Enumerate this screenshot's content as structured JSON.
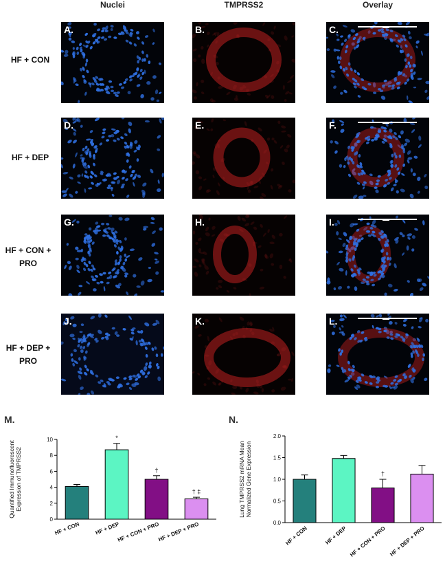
{
  "columns": [
    "Nuclei",
    "TMPRSS2",
    "Overlay"
  ],
  "rows": [
    {
      "label": "HF + CON",
      "panels": [
        "A.",
        "B.",
        "C."
      ]
    },
    {
      "label": "HF + DEP",
      "panels": [
        "D.",
        "E.",
        "F."
      ]
    },
    {
      "label": "HF + CON + PRO",
      "panels": [
        "G.",
        "H.",
        "I."
      ]
    },
    {
      "label": "HF + DEP + PRO",
      "panels": [
        "J.",
        "K.",
        "L."
      ]
    }
  ],
  "colors": {
    "nuclei": "#2f6fe0",
    "tmprss2": "#c02020",
    "hf_con": "#24807c",
    "hf_dep": "#5cf5c3",
    "hf_con_pro": "#820f85",
    "hf_dep_pro": "#db8ff0"
  },
  "chart_data": [
    {
      "panel_label": "M.",
      "type": "bar",
      "categories": [
        "HF + CON",
        "HF + DEP",
        "HF + CON + PRO",
        "HF + DEP + PRO"
      ],
      "values": [
        4.1,
        8.7,
        5.0,
        2.55
      ],
      "errors": [
        0.25,
        0.8,
        0.45,
        0.2
      ],
      "annotations": [
        "",
        "*",
        "†",
        "† ‡"
      ],
      "ylabel": "Quantified Immunofluorescent Expression of TMPRSS2",
      "ylim": [
        0,
        10
      ],
      "yticks": [
        0,
        2,
        4,
        6,
        8,
        10
      ]
    },
    {
      "panel_label": "N.",
      "type": "bar",
      "categories": [
        "HF + CON",
        "HF + DEP",
        "HF + CON + PRO",
        "HF + DEP + PRO"
      ],
      "values": [
        1.0,
        1.48,
        0.8,
        1.12
      ],
      "errors": [
        0.1,
        0.07,
        0.2,
        0.2
      ],
      "annotations": [
        "",
        "",
        "†",
        ""
      ],
      "ylabel": "Lung TMPRSS2 mRNA Mean Normalized Gene Expression",
      "ylim": [
        0,
        2.0
      ],
      "yticks": [
        "0.0",
        "0.5",
        "1.0",
        "1.5",
        "2.0"
      ]
    }
  ]
}
